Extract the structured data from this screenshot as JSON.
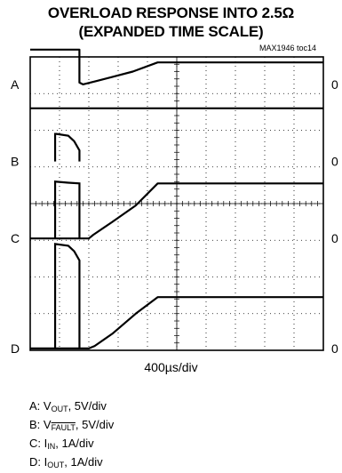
{
  "chart_data": {
    "type": "line",
    "title": "OVERLOAD RESPONSE INTO 2.5Ω",
    "subtitle": "(EXPANDED TIME SCALE)",
    "figure_id": "MAX1946 toc14",
    "timebase": "400µs/div",
    "x_divisions": 10,
    "y_divisions": 8,
    "xlim": [
      0,
      10
    ],
    "ylim": [
      0,
      8
    ],
    "zero_label": "0",
    "channels": [
      {
        "name": "A",
        "zero_level": 7.25,
        "points": [
          [
            0,
            8.2
          ],
          [
            1.68,
            8.2
          ],
          [
            1.68,
            7.3
          ],
          [
            1.8,
            7.25
          ],
          [
            2.3,
            7.35
          ],
          [
            3.5,
            7.6
          ],
          [
            4.35,
            7.85
          ],
          [
            10,
            7.85
          ]
        ]
      },
      {
        "name": "B",
        "zero_level": 5.15,
        "points": [
          [
            0,
            6.6
          ],
          [
            3.2,
            6.6
          ],
          [
            3.2,
            6.6
          ],
          [
            10,
            6.6
          ]
        ]
      },
      {
        "name": "C",
        "zero_level": 3.05,
        "points": [
          [
            0,
            3.05
          ],
          [
            1.7,
            3.05
          ],
          [
            1.72,
            3.05
          ],
          [
            2.0,
            3.05
          ],
          [
            2.15,
            3.15
          ],
          [
            2.8,
            3.5
          ],
          [
            3.6,
            3.95
          ],
          [
            4.35,
            4.55
          ],
          [
            10,
            4.55
          ]
        ]
      },
      {
        "name": "D",
        "zero_level": 0.05,
        "points": [
          [
            0,
            0.05
          ],
          [
            1.7,
            0.05
          ],
          [
            2.0,
            0.05
          ],
          [
            2.2,
            0.12
          ],
          [
            2.8,
            0.45
          ],
          [
            3.6,
            1.0
          ],
          [
            4.35,
            1.45
          ],
          [
            10,
            1.45
          ]
        ]
      }
    ],
    "pulse": {
      "start": 0.85,
      "end": 1.68,
      "b_top": 5.9,
      "b_bottom": 5.15,
      "c_top": 4.6,
      "d_top": 2.9
    },
    "legend": [
      {
        "id": "A",
        "text_pre": "A: V",
        "sub": "OUT",
        "text_post": ", 5V/div"
      },
      {
        "id": "B",
        "text_pre": "B: V",
        "sub": "FAULT",
        "text_post": ", 5V/div",
        "sub_overline": true
      },
      {
        "id": "C",
        "text_pre": "C: I",
        "sub": "IN",
        "text_post": ", 1A/div"
      },
      {
        "id": "D",
        "text_pre": "D: I",
        "sub": "OUT",
        "text_post": ", 1A/div"
      }
    ]
  }
}
